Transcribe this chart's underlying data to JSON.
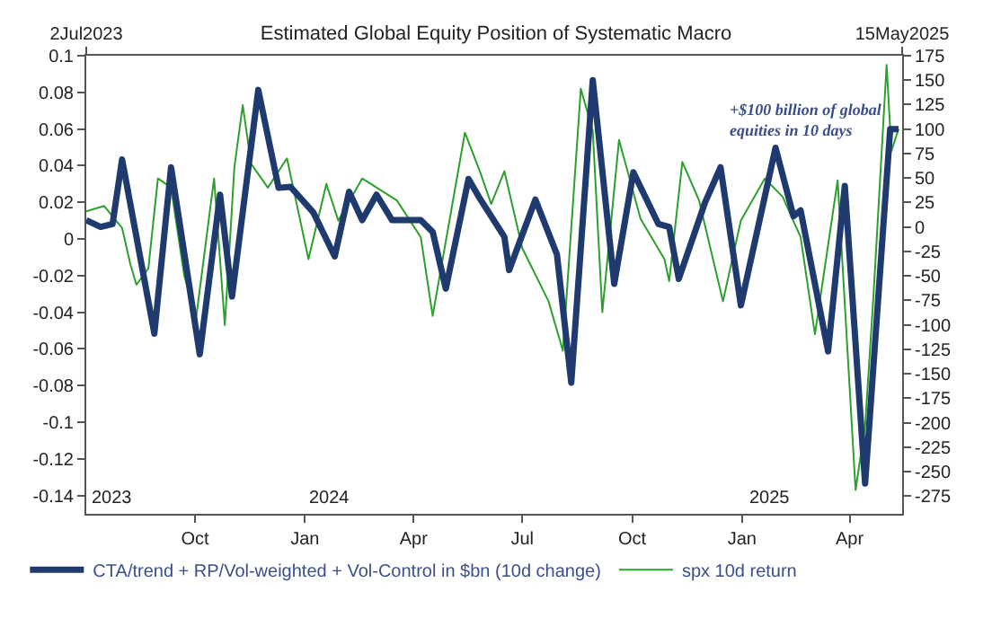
{
  "chart_data": {
    "type": "line",
    "title": "Estimated Global Equity Position of Systematic Macro",
    "xlim": [
      "2023-07-02",
      "2025-05-15"
    ],
    "xticks": [
      {
        "value": "2023-10-01",
        "label": "Oct"
      },
      {
        "value": "2024-01-01",
        "label": "Jan"
      },
      {
        "value": "2024-04-01",
        "label": "Apr"
      },
      {
        "value": "2024-07-01",
        "label": "Jul"
      },
      {
        "value": "2024-10-01",
        "label": "Oct"
      },
      {
        "value": "2025-01-01",
        "label": "Jan"
      },
      {
        "value": "2025-04-01",
        "label": "Apr"
      }
    ],
    "x2lim": [
      "2023-07-02",
      "2025-05-15"
    ],
    "x2ticks": [
      {
        "value": "2023-07-02",
        "label": "2Jul2023"
      },
      {
        "value": "2025-05-15",
        "label": "15May2025"
      }
    ],
    "ylim": [
      -0.15,
      0.1
    ],
    "yticks": [
      0.1,
      0.08,
      0.06,
      0.04,
      0.02,
      0,
      -0.02,
      -0.04,
      -0.06,
      -0.08,
      -0.1,
      -0.12,
      -0.14
    ],
    "y2lim": [
      -293,
      175
    ],
    "y2ticks": [
      175,
      150,
      125,
      100,
      75,
      50,
      25,
      0,
      -25,
      -50,
      -75,
      -100,
      -125,
      -150,
      -175,
      -200,
      -225,
      -250,
      -275
    ],
    "legend": "bottom",
    "series": [
      {
        "name": "CTA/trend + RP/Vol-weighted + Vol-Control in $bn (10d change)",
        "color": "#1f3a6e",
        "axis": "y2",
        "x": [
          "2023-07-02",
          "2023-07-14",
          "2023-07-24",
          "2023-08-01",
          "2023-08-28",
          "2023-09-11",
          "2023-10-05",
          "2023-10-22",
          "2023-11-01",
          "2023-11-23",
          "2023-12-10",
          "2023-12-20",
          "2024-01-08",
          "2024-01-26",
          "2024-02-07",
          "2024-02-18",
          "2024-03-01",
          "2024-03-14",
          "2024-04-07",
          "2024-04-17",
          "2024-04-28",
          "2024-05-17",
          "2024-05-27",
          "2024-06-16",
          "2024-06-20",
          "2024-07-12",
          "2024-07-30",
          "2024-08-11",
          "2024-08-29",
          "2024-09-16",
          "2024-10-02",
          "2024-10-23",
          "2024-11-01",
          "2024-11-09",
          "2024-12-01",
          "2024-12-14",
          "2024-12-31",
          "2025-01-29",
          "2025-02-13",
          "2025-02-19",
          "2025-03-14",
          "2025-03-28",
          "2025-04-14",
          "2025-05-05",
          "2025-05-12"
        ],
        "values": [
          7,
          0,
          3,
          69,
          -109,
          61,
          -130,
          33,
          -71,
          140,
          40,
          41,
          15,
          -30,
          36,
          7,
          33,
          7,
          7,
          -5,
          -63,
          49,
          28,
          -10,
          -44,
          28,
          -28,
          -159,
          150,
          -58,
          56,
          3,
          0,
          -53,
          25,
          61,
          -80,
          81,
          11,
          17,
          -127,
          42,
          -262,
          100,
          100
        ]
      },
      {
        "name": "spx 10d return",
        "color": "#2ca02c",
        "axis": "y",
        "x": [
          "2023-07-02",
          "2023-07-17",
          "2023-08-01",
          "2023-08-08",
          "2023-08-13",
          "2023-08-23",
          "2023-08-31",
          "2023-09-11",
          "2023-09-22",
          "2023-10-02",
          "2023-10-17",
          "2023-10-26",
          "2023-11-03",
          "2023-11-10",
          "2023-11-17",
          "2023-12-01",
          "2023-12-17",
          "2024-01-04",
          "2024-01-19",
          "2024-01-29",
          "2024-02-18",
          "2024-03-18",
          "2024-04-07",
          "2024-04-17",
          "2024-05-14",
          "2024-05-27",
          "2024-06-05",
          "2024-06-16",
          "2024-07-01",
          "2024-07-23",
          "2024-08-04",
          "2024-08-19",
          "2024-08-29",
          "2024-09-06",
          "2024-09-20",
          "2024-10-08",
          "2024-10-28",
          "2024-11-01",
          "2024-11-12",
          "2024-11-26",
          "2024-12-16",
          "2024-12-31",
          "2025-01-20",
          "2025-02-04",
          "2025-02-19",
          "2025-03-03",
          "2025-03-22",
          "2025-04-06",
          "2025-04-14",
          "2025-04-21",
          "2025-05-02",
          "2025-05-06",
          "2025-05-12"
        ],
        "values": [
          0.015,
          0.018,
          0.006,
          -0.014,
          -0.025,
          -0.016,
          0.033,
          0.028,
          -0.02,
          -0.043,
          0.033,
          -0.047,
          0.039,
          0.073,
          0.041,
          0.028,
          0.044,
          -0.011,
          0.03,
          0.01,
          0.033,
          0.021,
          0.001,
          -0.042,
          0.058,
          0.036,
          0.019,
          0.037,
          -0.005,
          -0.034,
          -0.061,
          0.082,
          0.059,
          -0.04,
          0.054,
          0.011,
          -0.011,
          -0.023,
          0.042,
          0.021,
          -0.034,
          0.01,
          0.033,
          0.023,
          0.001,
          -0.052,
          0.032,
          -0.137,
          -0.102,
          -0.031,
          0.095,
          0.048,
          0.06
        ]
      }
    ],
    "annotations": [
      "2023",
      "2024",
      "2025",
      "+$100 billion of global equities in 10 days"
    ]
  }
}
